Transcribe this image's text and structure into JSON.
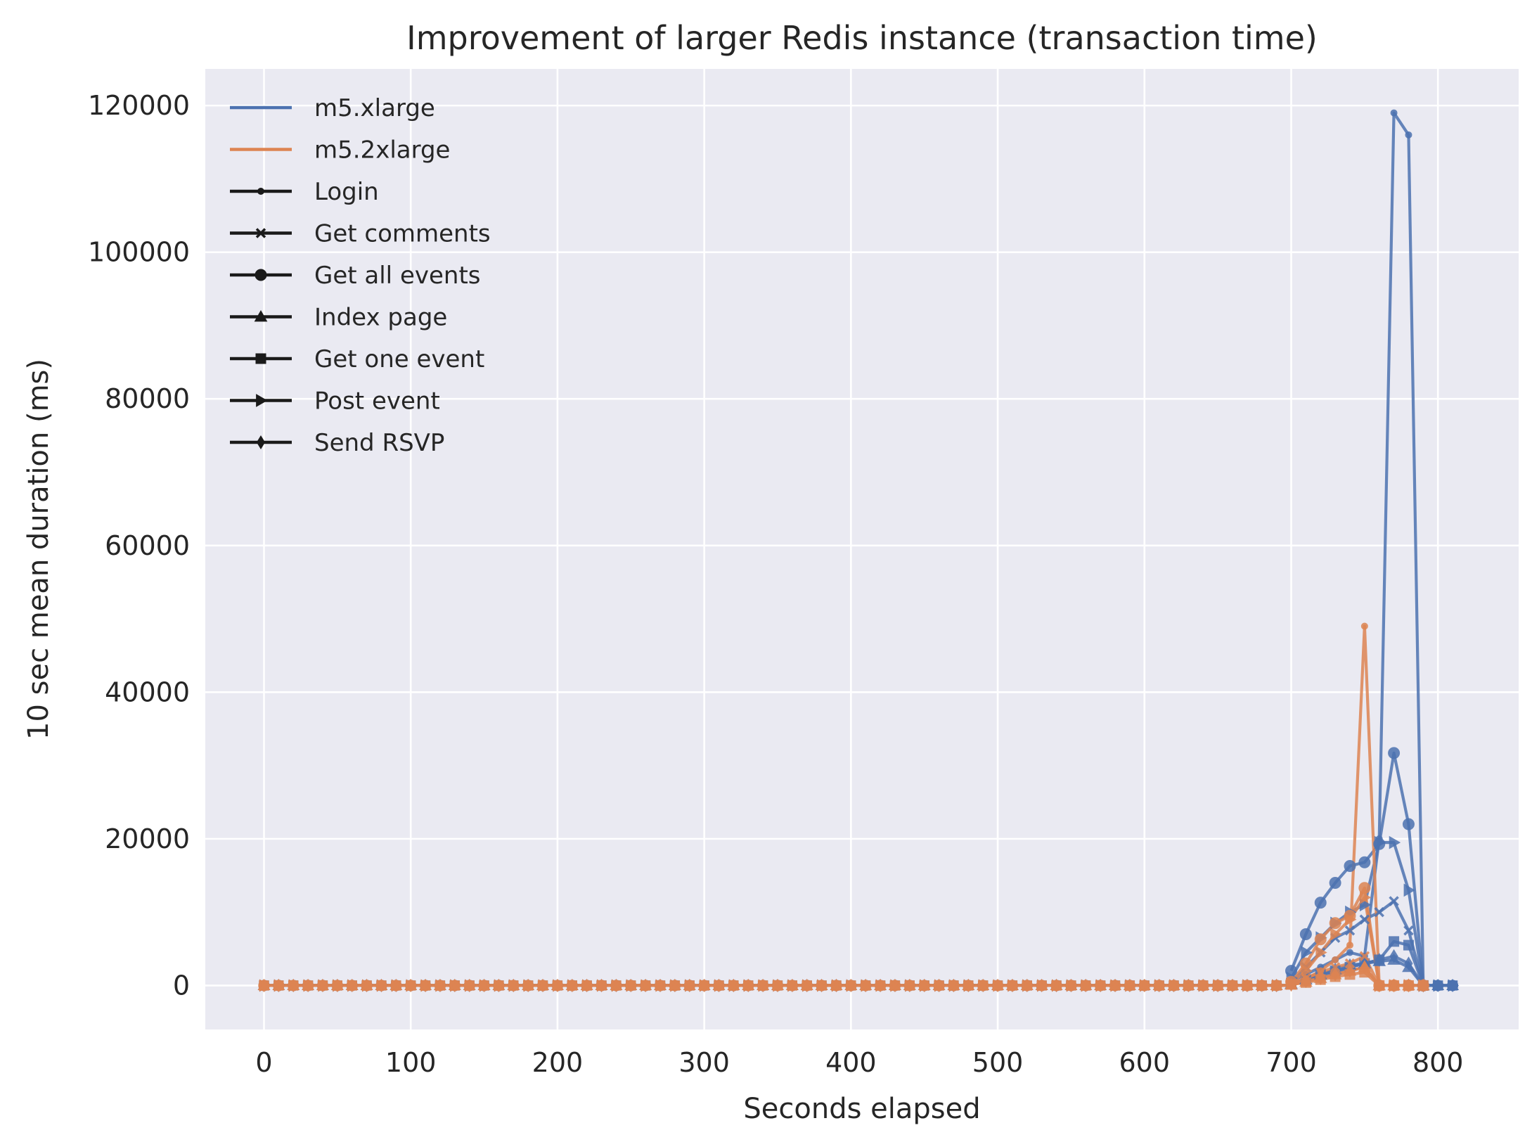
{
  "chart_data": {
    "type": "line",
    "title": "Improvement of larger Redis instance (transaction time)",
    "xlabel": "Seconds elapsed",
    "ylabel": "10 sec mean duration (ms)",
    "xlim": [
      -40,
      855
    ],
    "ylim": [
      -6000,
      125000
    ],
    "xticks": [
      0,
      100,
      200,
      300,
      400,
      500,
      600,
      700,
      800
    ],
    "yticks": [
      0,
      20000,
      40000,
      60000,
      80000,
      100000,
      120000
    ],
    "xtick_labels": [
      "0",
      "100",
      "200",
      "300",
      "400",
      "500",
      "600",
      "700",
      "800"
    ],
    "ytick_labels": [
      "0",
      "20000",
      "40000",
      "60000",
      "80000",
      "100000",
      "120000"
    ],
    "grid": true,
    "legend_position": "top-left",
    "legend": {
      "instances": [
        {
          "name": "m5.xlarge",
          "color": "#4c72b0"
        },
        {
          "name": "m5.2xlarge",
          "color": "#dd8452"
        }
      ],
      "transactions": [
        {
          "name": "Login",
          "marker": "point"
        },
        {
          "name": "Get comments",
          "marker": "x"
        },
        {
          "name": "Get all events",
          "marker": "circle"
        },
        {
          "name": "Index page",
          "marker": "triangle-up"
        },
        {
          "name": "Get one event",
          "marker": "square"
        },
        {
          "name": "Post event",
          "marker": "triangle-right"
        },
        {
          "name": "Send RSVP",
          "marker": "thin-diamond"
        }
      ]
    },
    "series": [
      {
        "instance": "m5.xlarge",
        "transaction": "Login",
        "x": [
          700,
          710,
          720,
          730,
          740,
          750,
          760,
          770,
          780,
          790
        ],
        "y": [
          600,
          1500,
          2500,
          3500,
          4500,
          4000,
          20000,
          119000,
          116000,
          0
        ]
      },
      {
        "instance": "m5.xlarge",
        "transaction": "Get comments",
        "x": [
          700,
          710,
          720,
          730,
          740,
          750,
          760,
          770,
          780,
          790
        ],
        "y": [
          400,
          2500,
          4500,
          6500,
          7500,
          9000,
          10000,
          11500,
          7500,
          0
        ]
      },
      {
        "instance": "m5.xlarge",
        "transaction": "Get all events",
        "x": [
          700,
          710,
          720,
          730,
          740,
          750,
          760,
          770,
          780,
          790
        ],
        "y": [
          2000,
          7000,
          11300,
          14000,
          16300,
          16800,
          19300,
          31700,
          22000,
          0
        ]
      },
      {
        "instance": "m5.xlarge",
        "transaction": "Index page",
        "x": [
          700,
          710,
          720,
          730,
          740,
          750,
          760,
          770,
          780,
          790
        ],
        "y": [
          200,
          800,
          1500,
          2200,
          2800,
          3000,
          3300,
          3500,
          2500,
          0
        ]
      },
      {
        "instance": "m5.xlarge",
        "transaction": "Get one event",
        "x": [
          700,
          710,
          720,
          730,
          740,
          750,
          760,
          770,
          780,
          790
        ],
        "y": [
          300,
          800,
          1500,
          2000,
          2500,
          3000,
          3500,
          6000,
          5500,
          0
        ]
      },
      {
        "instance": "m5.xlarge",
        "transaction": "Post event",
        "x": [
          700,
          710,
          720,
          730,
          740,
          750,
          760,
          770,
          780,
          790
        ],
        "y": [
          1000,
          4500,
          6500,
          8500,
          10000,
          11000,
          19500,
          19500,
          13000,
          0
        ]
      },
      {
        "instance": "m5.xlarge",
        "transaction": "Send RSVP",
        "x": [
          700,
          710,
          720,
          730,
          740,
          750,
          760,
          770,
          780,
          790
        ],
        "y": [
          200,
          700,
          1200,
          1800,
          2500,
          3000,
          3500,
          4000,
          3000,
          0
        ]
      },
      {
        "instance": "m5.2xlarge",
        "transaction": "Login",
        "x": [
          700,
          710,
          720,
          730,
          740,
          750,
          760,
          770,
          780,
          790
        ],
        "y": [
          300,
          900,
          2000,
          3500,
          5500,
          49000,
          0,
          0,
          0,
          0
        ]
      },
      {
        "instance": "m5.2xlarge",
        "transaction": "Get comments",
        "x": [
          700,
          710,
          720,
          730,
          740,
          750,
          760,
          770,
          780,
          790
        ],
        "y": [
          200,
          1000,
          1800,
          2500,
          3000,
          4000,
          0,
          0,
          0,
          0
        ]
      },
      {
        "instance": "m5.2xlarge",
        "transaction": "Get all events",
        "x": [
          700,
          710,
          720,
          730,
          740,
          750,
          760,
          770,
          780,
          790
        ],
        "y": [
          500,
          3000,
          6300,
          8500,
          9500,
          13300,
          0,
          0,
          0,
          0
        ]
      },
      {
        "instance": "m5.2xlarge",
        "transaction": "Index page",
        "x": [
          700,
          710,
          720,
          730,
          740,
          750,
          760,
          770,
          780,
          790
        ],
        "y": [
          100,
          500,
          1000,
          1500,
          2000,
          2500,
          0,
          0,
          0,
          0
        ]
      },
      {
        "instance": "m5.2xlarge",
        "transaction": "Get one event",
        "x": [
          700,
          710,
          720,
          730,
          740,
          750,
          760,
          770,
          780,
          790
        ],
        "y": [
          150,
          400,
          800,
          1200,
          1500,
          1800,
          0,
          0,
          0,
          0
        ]
      },
      {
        "instance": "m5.2xlarge",
        "transaction": "Post event",
        "x": [
          700,
          710,
          720,
          730,
          740,
          750,
          760,
          770,
          780,
          790
        ],
        "y": [
          300,
          2000,
          4500,
          7000,
          9000,
          12000,
          0,
          0,
          0,
          0
        ]
      },
      {
        "instance": "m5.2xlarge",
        "transaction": "Send RSVP",
        "x": [
          700,
          710,
          720,
          730,
          740,
          750,
          760,
          770,
          780,
          790
        ],
        "y": [
          100,
          600,
          1000,
          1500,
          2000,
          2500,
          0,
          0,
          0,
          0
        ]
      }
    ],
    "baseline": {
      "description_values": "all series near 0 ms",
      "m5.xlarge_x_range": [
        0,
        815
      ],
      "m5.2xlarge_x_range": [
        0,
        795
      ],
      "step": 10,
      "y": 0
    }
  }
}
